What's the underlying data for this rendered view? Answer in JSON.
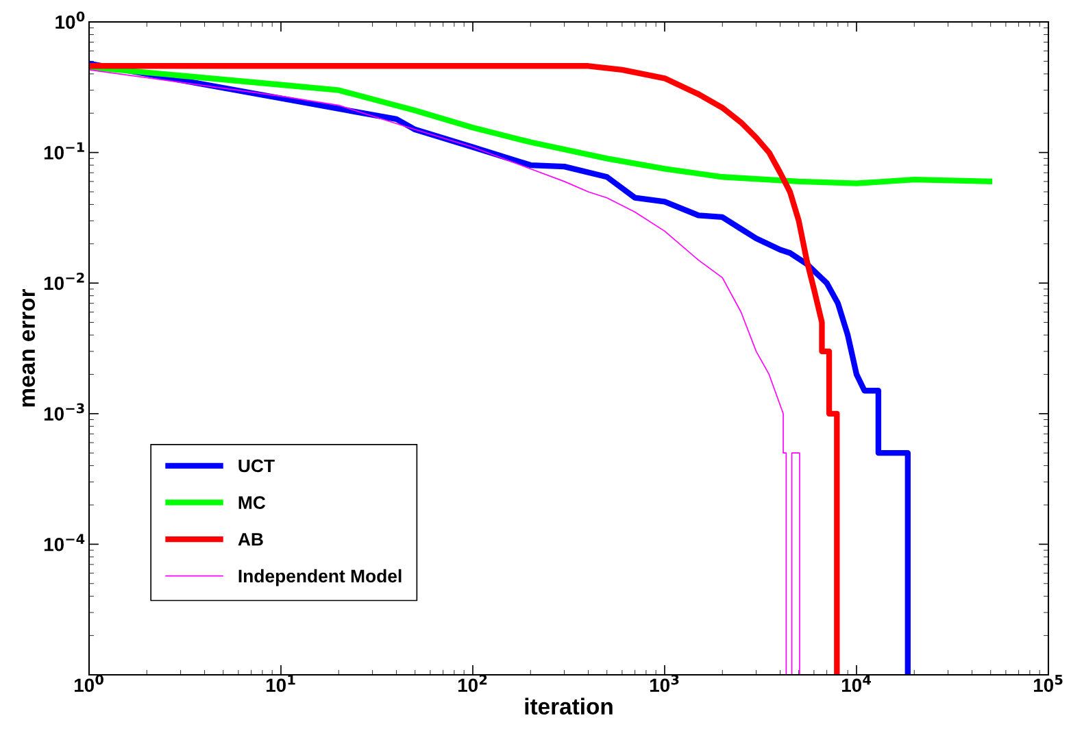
{
  "chart_data": {
    "type": "line",
    "xlabel": "iteration",
    "ylabel": "mean error",
    "log": "xy",
    "grid": false,
    "legend": "bottom left",
    "line_style": "solid",
    "marker": "none",
    "xlim": [
      1,
      100000
    ],
    "ylim": [
      1e-05,
      1
    ],
    "xticks": [
      {
        "value": 1,
        "label": "10$^{0}$"
      },
      {
        "value": 10,
        "label": "10$^{1}$"
      },
      {
        "value": 100,
        "label": "10$^{2}$"
      },
      {
        "value": 1000,
        "label": "10$^{3}$"
      },
      {
        "value": 10000,
        "label": "10$^{4}$"
      },
      {
        "value": 100000,
        "label": "10$^{5}$"
      }
    ],
    "yticks": [
      {
        "value": 1e-05,
        "label": null
      },
      {
        "value": 0.0001,
        "label": "10$^{−4}$"
      },
      {
        "value": 0.001,
        "label": "10$^{−3}$"
      },
      {
        "value": 0.01,
        "label": "10$^{−2}$"
      },
      {
        "value": 0.1,
        "label": "10$^{−1}$"
      },
      {
        "value": 1,
        "label": "10$^{0}$"
      }
    ],
    "series": [
      {
        "name": "UCT",
        "color": "#0000ff",
        "x": [
          1,
          10,
          40,
          50,
          100,
          200,
          300,
          500,
          700,
          1000,
          1500,
          2000,
          2500,
          3000,
          4000,
          4500,
          5500,
          7000,
          8000,
          9000,
          10000,
          11000,
          13000,
          13000,
          18500,
          18500
        ],
        "values": [
          0.48,
          0.26,
          0.18,
          0.15,
          0.11,
          0.08,
          0.078,
          0.065,
          0.045,
          0.042,
          0.033,
          0.032,
          0.026,
          0.022,
          0.018,
          0.017,
          0.014,
          0.01,
          0.007,
          0.004,
          0.002,
          0.0015,
          0.0015,
          0.0005,
          0.0005,
          1e-05
        ]
      },
      {
        "name": "MC",
        "color": "#00ff00",
        "x": [
          1,
          10,
          20,
          50,
          100,
          200,
          500,
          1000,
          2000,
          5000,
          10000,
          20000,
          51000
        ],
        "values": [
          0.45,
          0.33,
          0.3,
          0.21,
          0.155,
          0.12,
          0.09,
          0.075,
          0.065,
          0.06,
          0.058,
          0.062,
          0.06
        ]
      },
      {
        "name": "AB",
        "color": "#ff0000",
        "x": [
          1,
          400,
          600,
          1000,
          1500,
          2000,
          2500,
          3000,
          3500,
          4000,
          4500,
          5000,
          5500,
          6000,
          6600,
          6600,
          7200,
          7200,
          7900,
          7900
        ],
        "values": [
          0.46,
          0.46,
          0.43,
          0.37,
          0.28,
          0.22,
          0.17,
          0.13,
          0.1,
          0.07,
          0.05,
          0.03,
          0.015,
          0.009,
          0.005,
          0.003,
          0.003,
          0.001,
          0.001,
          1e-05
        ]
      },
      {
        "name": "Independent Model",
        "color": "#ff00ff",
        "x": [
          1,
          10,
          20,
          50,
          100,
          200,
          300,
          400,
          500,
          700,
          1000,
          1500,
          2000,
          2500,
          3000,
          3500,
          4150,
          4150,
          4300,
          4300,
          4600,
          4600,
          5050,
          5050
        ],
        "values": [
          0.43,
          0.27,
          0.23,
          0.15,
          0.11,
          0.075,
          0.06,
          0.05,
          0.045,
          0.035,
          0.025,
          0.015,
          0.011,
          0.006,
          0.003,
          0.002,
          0.001,
          0.0005,
          0.0005,
          1e-05,
          1e-05,
          0.0005,
          0.0005,
          1e-05
        ]
      }
    ]
  }
}
